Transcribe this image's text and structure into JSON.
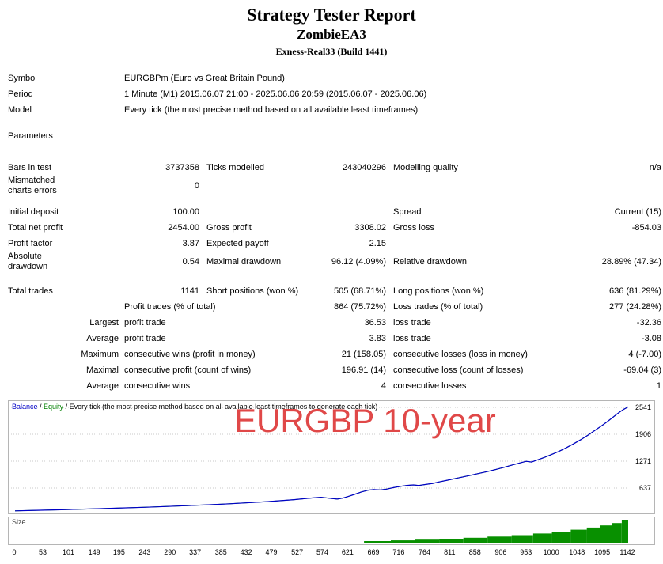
{
  "header": {
    "title": "Strategy Tester Report",
    "ea_name": "ZombieEA3",
    "server": "Exness-Real33 (Build 1441)"
  },
  "report": {
    "rows": [
      {
        "h": 20,
        "cells": [
          {
            "c": 1,
            "t": "Symbol"
          },
          {
            "c": 2,
            "s": 5,
            "a": "l",
            "t": "EURGBPm (Euro vs Great Britain Pound)"
          }
        ]
      },
      {
        "h": 20,
        "cells": [
          {
            "c": 1,
            "t": "Period"
          },
          {
            "c": 2,
            "s": 5,
            "a": "l",
            "t": "1 Minute (M1) 2015.06.07 21:00 - 2025.06.06 20:59 (2015.06.07 - 2025.06.06)"
          }
        ]
      },
      {
        "h": 20,
        "cells": [
          {
            "c": 1,
            "t": "Model"
          },
          {
            "c": 2,
            "s": 5,
            "a": "l",
            "t": "Every tick (the most precise method based on all available least timeframes)"
          }
        ]
      },
      {
        "gap": 13
      },
      {
        "h": 20,
        "cells": [
          {
            "c": 1,
            "t": "Parameters"
          }
        ]
      },
      {
        "gap": 20
      },
      {
        "h": 20,
        "cells": [
          {
            "c": 1,
            "t": "Bars in test"
          },
          {
            "c": 2,
            "t": "3737358"
          },
          {
            "c": 3,
            "t": "Ticks modelled"
          },
          {
            "c": 4,
            "t": "243040296"
          },
          {
            "c": 5,
            "t": "Modelling quality"
          },
          {
            "c": 6,
            "t": "n/a"
          }
        ]
      },
      {
        "h": 26,
        "cells": [
          {
            "c": 1,
            "t": "Mismatched\ncharts errors"
          },
          {
            "c": 2,
            "t": "0"
          }
        ]
      },
      {
        "gap": 10
      },
      {
        "h": 20,
        "cells": [
          {
            "c": 1,
            "t": "Initial deposit"
          },
          {
            "c": 2,
            "t": "100.00"
          },
          {
            "c": 5,
            "t": "Spread"
          },
          {
            "c": 6,
            "t": "Current (15)"
          }
        ]
      },
      {
        "h": 20,
        "cells": [
          {
            "c": 1,
            "t": "Total net profit"
          },
          {
            "c": 2,
            "t": "2454.00"
          },
          {
            "c": 3,
            "t": "Gross profit"
          },
          {
            "c": 4,
            "t": "3308.02"
          },
          {
            "c": 5,
            "t": "Gross loss"
          },
          {
            "c": 6,
            "t": "-854.03"
          }
        ]
      },
      {
        "h": 20,
        "cells": [
          {
            "c": 1,
            "t": "Profit factor"
          },
          {
            "c": 2,
            "t": "3.87"
          },
          {
            "c": 3,
            "t": "Expected payoff"
          },
          {
            "c": 4,
            "t": "2.15"
          }
        ]
      },
      {
        "h": 26,
        "cells": [
          {
            "c": 1,
            "t": "Absolute\ndrawdown"
          },
          {
            "c": 2,
            "t": "0.54"
          },
          {
            "c": 3,
            "t": "Maximal drawdown"
          },
          {
            "c": 4,
            "t": "96.12 (4.09%)"
          },
          {
            "c": 5,
            "t": "Relative drawdown"
          },
          {
            "c": 6,
            "t": "28.89% (47.34)"
          }
        ]
      },
      {
        "gap": 14
      },
      {
        "h": 20,
        "cells": [
          {
            "c": 1,
            "t": "Total trades"
          },
          {
            "c": 2,
            "t": "1141"
          },
          {
            "c": 3,
            "t": "Short positions (won %)"
          },
          {
            "c": 4,
            "t": "505 (68.71%)"
          },
          {
            "c": 5,
            "t": "Long positions (won %)"
          },
          {
            "c": 6,
            "t": "636 (81.29%)"
          }
        ]
      },
      {
        "h": 20,
        "cells": [
          {
            "c": 2,
            "s": 2,
            "a": "l",
            "t": "Profit trades (% of total)"
          },
          {
            "c": 4,
            "t": "864 (75.72%)"
          },
          {
            "c": 5,
            "t": "Loss trades (% of total)"
          },
          {
            "c": 6,
            "t": "277 (24.28%)"
          }
        ]
      },
      {
        "h": 20,
        "cells": [
          {
            "c": 1,
            "a": "r",
            "t": "Largest"
          },
          {
            "c": 2,
            "s": 2,
            "a": "l",
            "t": "profit trade"
          },
          {
            "c": 4,
            "t": "36.53"
          },
          {
            "c": 5,
            "t": "loss trade"
          },
          {
            "c": 6,
            "t": "-32.36"
          }
        ]
      },
      {
        "h": 20,
        "cells": [
          {
            "c": 1,
            "a": "r",
            "t": "Average"
          },
          {
            "c": 2,
            "s": 2,
            "a": "l",
            "t": "profit trade"
          },
          {
            "c": 4,
            "t": "3.83"
          },
          {
            "c": 5,
            "t": "loss trade"
          },
          {
            "c": 6,
            "t": "-3.08"
          }
        ]
      },
      {
        "h": 20,
        "cells": [
          {
            "c": 1,
            "a": "r",
            "t": "Maximum"
          },
          {
            "c": 2,
            "s": 2,
            "a": "l",
            "t": "consecutive wins (profit in money)"
          },
          {
            "c": 4,
            "t": "21 (158.05)"
          },
          {
            "c": 5,
            "t": "consecutive losses (loss in money)"
          },
          {
            "c": 6,
            "t": "4 (-7.00)"
          }
        ]
      },
      {
        "h": 20,
        "cells": [
          {
            "c": 1,
            "a": "r",
            "t": "Maximal"
          },
          {
            "c": 2,
            "s": 2,
            "a": "l",
            "t": "consecutive profit (count of wins)"
          },
          {
            "c": 4,
            "t": "196.91 (14)"
          },
          {
            "c": 5,
            "t": "consecutive loss (count of losses)"
          },
          {
            "c": 6,
            "t": "-69.04 (3)"
          }
        ]
      },
      {
        "h": 20,
        "cells": [
          {
            "c": 1,
            "a": "r",
            "t": "Average"
          },
          {
            "c": 2,
            "s": 2,
            "a": "l",
            "t": "consecutive wins"
          },
          {
            "c": 4,
            "t": "4"
          },
          {
            "c": 5,
            "t": "consecutive losses"
          },
          {
            "c": 6,
            "t": "1"
          }
        ]
      }
    ]
  },
  "chart_data": {
    "type": "line",
    "legend": {
      "balance_label": "Balance",
      "sep1": " / ",
      "equity_label": "Equity",
      "model_text": " / Every tick (the most precise method based on all available least timeframes to generate each tick)"
    },
    "watermark": "EURGBP 10-year",
    "size_panel_label": "Size",
    "x_range": [
      0,
      1142
    ],
    "x_ticks": [
      0,
      53,
      101,
      149,
      195,
      243,
      290,
      337,
      385,
      432,
      479,
      527,
      574,
      621,
      669,
      716,
      764,
      811,
      858,
      906,
      953,
      1000,
      1048,
      1095,
      1142
    ],
    "y_ticks": [
      637,
      1271,
      1906,
      2541
    ],
    "colors": {
      "balance": "#0000C8",
      "equity": "#008000",
      "size": "#089000",
      "grid": "#c9c9c9",
      "watermark": "#E04848"
    },
    "balance_curve": [
      [
        0,
        100
      ],
      [
        40,
        112
      ],
      [
        80,
        124
      ],
      [
        120,
        138
      ],
      [
        160,
        152
      ],
      [
        200,
        168
      ],
      [
        240,
        184
      ],
      [
        280,
        202
      ],
      [
        320,
        222
      ],
      [
        360,
        244
      ],
      [
        400,
        268
      ],
      [
        440,
        295
      ],
      [
        470,
        318
      ],
      [
        500,
        345
      ],
      [
        520,
        365
      ],
      [
        540,
        388
      ],
      [
        555,
        405
      ],
      [
        570,
        420
      ],
      [
        585,
        398
      ],
      [
        600,
        378
      ],
      [
        610,
        400
      ],
      [
        620,
        438
      ],
      [
        632,
        488
      ],
      [
        645,
        545
      ],
      [
        658,
        588
      ],
      [
        668,
        602
      ],
      [
        680,
        592
      ],
      [
        692,
        612
      ],
      [
        705,
        648
      ],
      [
        718,
        678
      ],
      [
        730,
        700
      ],
      [
        742,
        712
      ],
      [
        752,
        698
      ],
      [
        765,
        722
      ],
      [
        778,
        748
      ],
      [
        790,
        782
      ],
      [
        805,
        822
      ],
      [
        820,
        862
      ],
      [
        835,
        902
      ],
      [
        850,
        944
      ],
      [
        865,
        986
      ],
      [
        880,
        1028
      ],
      [
        895,
        1074
      ],
      [
        910,
        1124
      ],
      [
        925,
        1176
      ],
      [
        940,
        1228
      ],
      [
        952,
        1268
      ],
      [
        962,
        1252
      ],
      [
        972,
        1296
      ],
      [
        985,
        1356
      ],
      [
        998,
        1422
      ],
      [
        1012,
        1498
      ],
      [
        1026,
        1584
      ],
      [
        1040,
        1678
      ],
      [
        1054,
        1782
      ],
      [
        1068,
        1894
      ],
      [
        1080,
        1998
      ],
      [
        1092,
        2102
      ],
      [
        1103,
        2204
      ],
      [
        1113,
        2302
      ],
      [
        1121,
        2382
      ],
      [
        1128,
        2448
      ],
      [
        1134,
        2498
      ],
      [
        1139,
        2532
      ],
      [
        1142,
        2554
      ]
    ],
    "size_steps": [
      {
        "from": 650,
        "to": 700,
        "rel": 0.1
      },
      {
        "from": 700,
        "to": 745,
        "rel": 0.13
      },
      {
        "from": 745,
        "to": 790,
        "rel": 0.16
      },
      {
        "from": 790,
        "to": 835,
        "rel": 0.2
      },
      {
        "from": 835,
        "to": 880,
        "rel": 0.24
      },
      {
        "from": 880,
        "to": 925,
        "rel": 0.29
      },
      {
        "from": 925,
        "to": 965,
        "rel": 0.35
      },
      {
        "from": 965,
        "to": 1000,
        "rel": 0.42
      },
      {
        "from": 1000,
        "to": 1035,
        "rel": 0.5
      },
      {
        "from": 1035,
        "to": 1065,
        "rel": 0.58
      },
      {
        "from": 1065,
        "to": 1090,
        "rel": 0.67
      },
      {
        "from": 1090,
        "to": 1112,
        "rel": 0.76
      },
      {
        "from": 1112,
        "to": 1130,
        "rel": 0.86
      },
      {
        "from": 1130,
        "to": 1142,
        "rel": 0.97
      }
    ]
  }
}
